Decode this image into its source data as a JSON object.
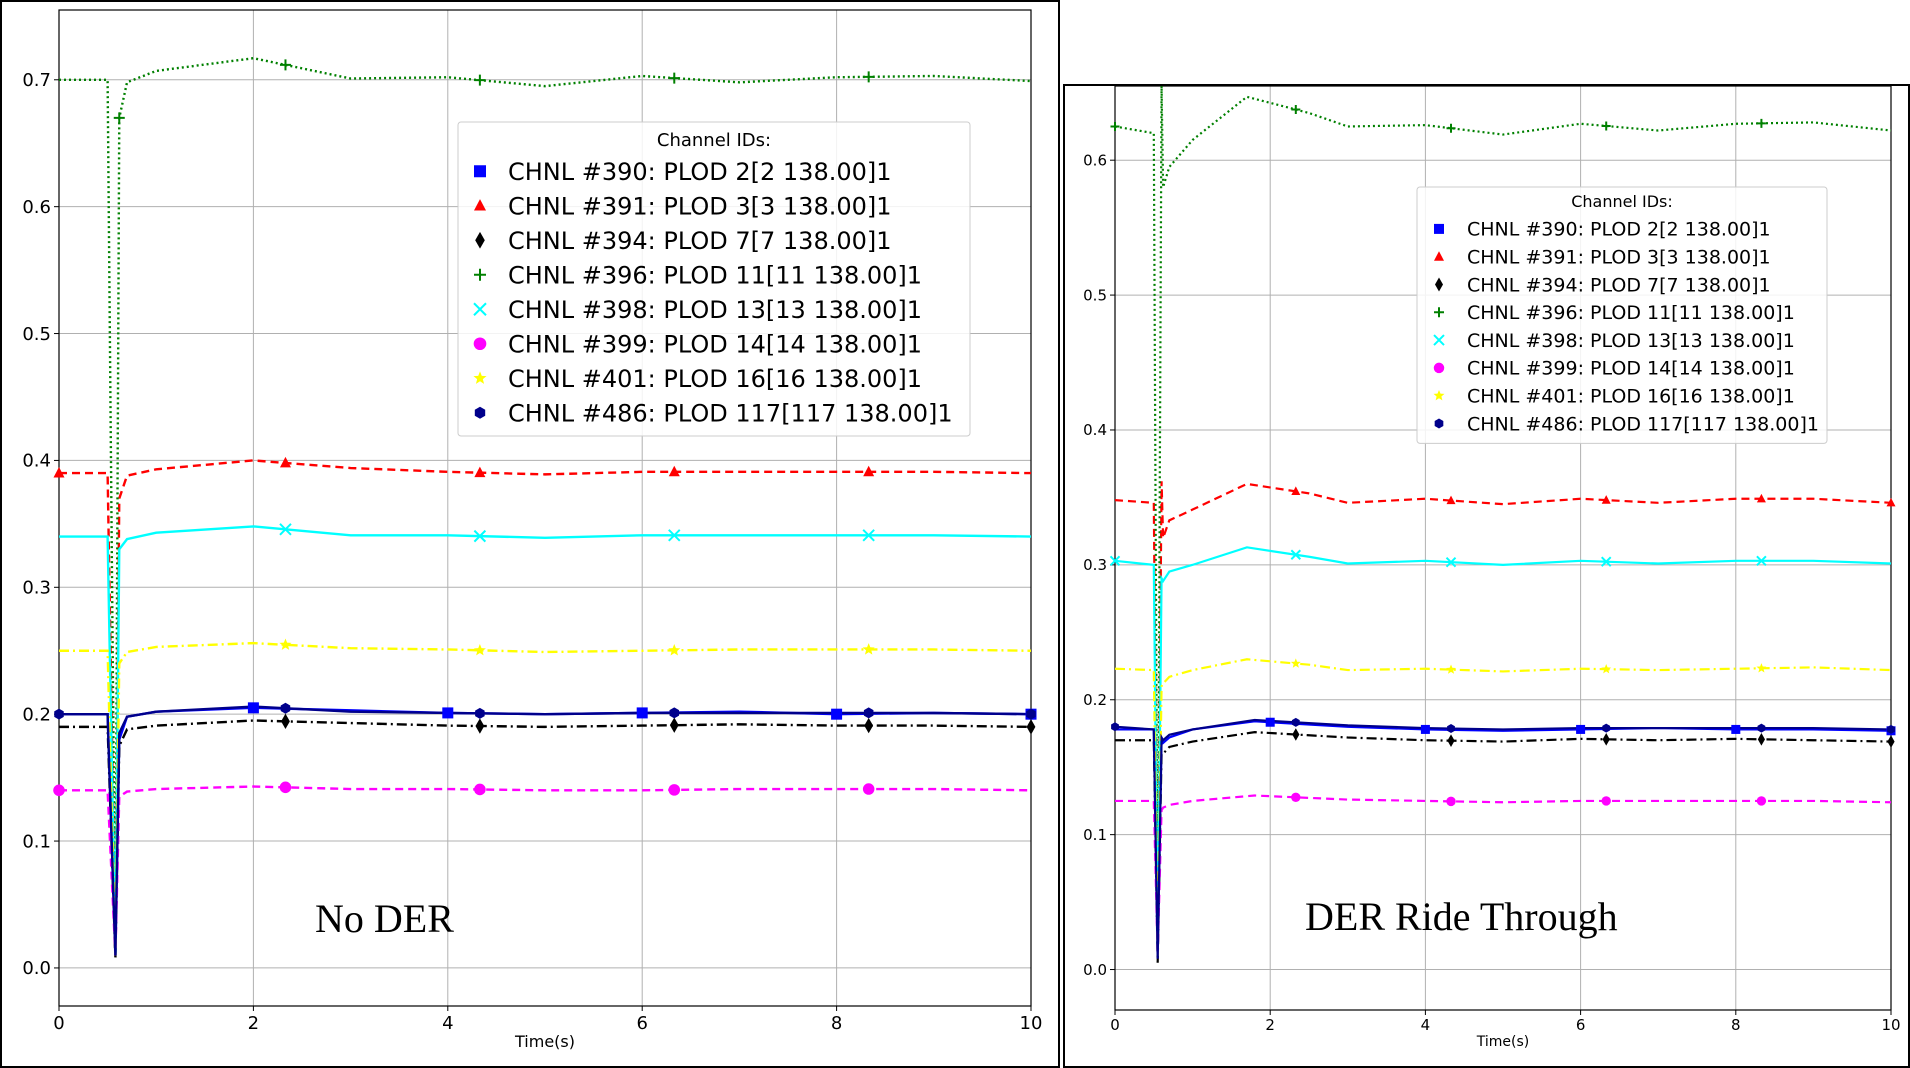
{
  "chart_data": [
    {
      "type": "line",
      "annotation": "No DER",
      "xlabel": "Time(s)",
      "ylabel": "",
      "xlim": [
        0,
        10
      ],
      "ylim": [
        -0.03,
        0.755
      ],
      "xticks": [
        0,
        2,
        4,
        6,
        8,
        10
      ],
      "yticks": [
        0.0,
        0.1,
        0.2,
        0.3,
        0.4,
        0.5,
        0.6,
        0.7
      ],
      "grid": true,
      "legend_title": "Channel IDs:",
      "legend_position": "upper-right",
      "fault": {
        "start": 0.5,
        "end": 0.6
      },
      "series": [
        {
          "name": "CHNL #390: PLOD 2[2 138.00]1",
          "color": "#0000ff",
          "marker": "square",
          "dash": "solid",
          "x": [
            0,
            0.5,
            0.58,
            0.62,
            0.7,
            1.0,
            2.0,
            3.0,
            4.0,
            5.0,
            6.0,
            7.0,
            8.0,
            9.0,
            10.0
          ],
          "y": [
            0.2,
            0.2,
            0.01,
            0.18,
            0.198,
            0.202,
            0.205,
            0.203,
            0.201,
            0.2,
            0.201,
            0.202,
            0.2,
            0.201,
            0.2
          ],
          "marker_x": [
            2.0,
            4.0,
            6.0,
            8.0,
            10.0
          ]
        },
        {
          "name": "CHNL #391: PLOD 3[3 138.00]1",
          "color": "#ff0000",
          "marker": "triangle",
          "dash": "dashed",
          "x": [
            0,
            0.5,
            0.58,
            0.62,
            0.7,
            1.0,
            2.0,
            3.0,
            4.0,
            5.0,
            6.0,
            7.0,
            8.0,
            9.0,
            10.0
          ],
          "y": [
            0.39,
            0.39,
            0.02,
            0.37,
            0.388,
            0.393,
            0.4,
            0.394,
            0.391,
            0.389,
            0.391,
            0.391,
            0.391,
            0.391,
            0.39
          ],
          "marker_x": [
            0.0,
            2.33,
            4.33,
            6.33,
            8.33
          ]
        },
        {
          "name": "CHNL #394: PLOD 7[7 138.00]1",
          "color": "#000000",
          "marker": "diamond",
          "dash": "dashdot",
          "x": [
            0,
            0.5,
            0.58,
            0.62,
            0.7,
            1.0,
            2.0,
            3.0,
            4.0,
            5.0,
            6.0,
            7.0,
            8.0,
            9.0,
            10.0
          ],
          "y": [
            0.19,
            0.19,
            0.008,
            0.175,
            0.188,
            0.191,
            0.195,
            0.193,
            0.191,
            0.19,
            0.191,
            0.192,
            0.191,
            0.191,
            0.19
          ],
          "marker_x": [
            2.33,
            4.33,
            6.33,
            8.33,
            10.0
          ]
        },
        {
          "name": "CHNL #396: PLOD 11[11 138.00]1",
          "color": "#008000",
          "marker": "plus",
          "dash": "dotted",
          "x": [
            0,
            0.5,
            0.58,
            0.62,
            0.7,
            1.0,
            2.0,
            3.0,
            4.0,
            5.0,
            6.0,
            7.0,
            8.0,
            9.0,
            10.0
          ],
          "y": [
            0.7,
            0.7,
            0.01,
            0.67,
            0.698,
            0.707,
            0.717,
            0.701,
            0.702,
            0.695,
            0.703,
            0.698,
            0.702,
            0.703,
            0.699
          ],
          "marker_x": [
            0.62,
            2.33,
            4.33,
            6.33,
            8.33
          ]
        },
        {
          "name": "CHNL #398: PLOD 13[13 138.00]1",
          "color": "#00ffff",
          "marker": "x",
          "dash": "solid",
          "x": [
            0,
            0.5,
            0.58,
            0.62,
            0.7,
            1.0,
            2.0,
            3.0,
            4.0,
            5.0,
            6.0,
            7.0,
            8.0,
            9.0,
            10.0
          ],
          "y": [
            0.34,
            0.34,
            0.01,
            0.33,
            0.338,
            0.343,
            0.348,
            0.341,
            0.341,
            0.339,
            0.341,
            0.341,
            0.341,
            0.341,
            0.34
          ],
          "marker_x": [
            2.33,
            4.33,
            6.33,
            8.33
          ]
        },
        {
          "name": "CHNL #399: PLOD 14[14 138.00]1",
          "color": "#ff00ff",
          "marker": "circle",
          "dash": "dashed",
          "x": [
            0,
            0.5,
            0.58,
            0.62,
            0.7,
            1.0,
            2.0,
            3.0,
            4.0,
            5.0,
            6.0,
            7.0,
            8.0,
            9.0,
            10.0
          ],
          "y": [
            0.14,
            0.14,
            0.01,
            0.135,
            0.139,
            0.141,
            0.143,
            0.141,
            0.141,
            0.14,
            0.14,
            0.141,
            0.141,
            0.141,
            0.14
          ],
          "marker_x": [
            0.0,
            2.33,
            4.33,
            6.33,
            8.33
          ]
        },
        {
          "name": "CHNL #401: PLOD 16[16 138.00]1",
          "color": "#ffff00",
          "marker": "star",
          "dash": "dashdot",
          "x": [
            0,
            0.5,
            0.58,
            0.62,
            0.7,
            1.0,
            2.0,
            3.0,
            4.0,
            5.0,
            6.0,
            7.0,
            8.0,
            9.0,
            10.0
          ],
          "y": [
            0.25,
            0.25,
            0.01,
            0.24,
            0.249,
            0.253,
            0.256,
            0.252,
            0.251,
            0.249,
            0.25,
            0.251,
            0.251,
            0.251,
            0.25
          ],
          "marker_x": [
            2.33,
            4.33,
            6.33,
            8.33
          ]
        },
        {
          "name": "CHNL #486: PLOD 117[117 138.00]1",
          "color": "#00008b",
          "marker": "hexagon",
          "dash": "solid",
          "x": [
            0,
            0.5,
            0.58,
            0.62,
            0.7,
            1.0,
            2.0,
            3.0,
            4.0,
            5.0,
            6.0,
            7.0,
            8.0,
            9.0,
            10.0
          ],
          "y": [
            0.2,
            0.2,
            0.01,
            0.185,
            0.198,
            0.202,
            0.206,
            0.202,
            0.201,
            0.2,
            0.201,
            0.201,
            0.201,
            0.201,
            0.2
          ],
          "marker_x": [
            0.0,
            2.33,
            4.33,
            6.33,
            8.33,
            10.0
          ]
        }
      ]
    },
    {
      "type": "line",
      "annotation": "DER Ride Through",
      "xlabel": "Time(s)",
      "ylabel": "",
      "xlim": [
        0,
        10
      ],
      "ylim": [
        -0.03,
        0.655
      ],
      "xticks": [
        0,
        2,
        4,
        6,
        8,
        10
      ],
      "yticks": [
        0.0,
        0.1,
        0.2,
        0.3,
        0.4,
        0.5,
        0.6
      ],
      "grid": true,
      "legend_title": "Channel IDs:",
      "legend_position": "upper-right",
      "fault": {
        "start": 0.5,
        "end": 0.6
      },
      "series": [
        {
          "name": "CHNL #390: PLOD 2[2 138.00]1",
          "color": "#0000ff",
          "marker": "square",
          "dash": "solid",
          "x": [
            0,
            0.5,
            0.55,
            0.6,
            0.62,
            0.7,
            1.0,
            1.8,
            3.0,
            4.0,
            5.0,
            6.0,
            7.0,
            8.0,
            9.0,
            10.0
          ],
          "y": [
            0.178,
            0.178,
            0.01,
            0.17,
            0.168,
            0.172,
            0.178,
            0.184,
            0.18,
            0.178,
            0.177,
            0.178,
            0.179,
            0.178,
            0.178,
            0.177
          ],
          "marker_x": [
            2.0,
            4.0,
            6.0,
            8.0,
            10.0
          ]
        },
        {
          "name": "CHNL #391: PLOD 3[3 138.00]1",
          "color": "#ff0000",
          "marker": "triangle",
          "dash": "dashed",
          "x": [
            0,
            0.5,
            0.55,
            0.6,
            0.62,
            0.7,
            1.0,
            1.7,
            2.5,
            3.0,
            4.0,
            5.0,
            6.0,
            7.0,
            8.0,
            9.0,
            10.0
          ],
          "y": [
            0.348,
            0.346,
            0.01,
            0.362,
            0.32,
            0.333,
            0.341,
            0.36,
            0.353,
            0.346,
            0.349,
            0.345,
            0.349,
            0.346,
            0.349,
            0.349,
            0.346
          ],
          "marker_x": [
            2.33,
            4.33,
            6.33,
            8.33,
            10.0
          ]
        },
        {
          "name": "CHNL #394: PLOD 7[7 138.00]1",
          "color": "#000000",
          "marker": "diamond",
          "dash": "dashdot",
          "x": [
            0,
            0.5,
            0.55,
            0.6,
            0.62,
            0.7,
            1.0,
            1.8,
            3.0,
            4.0,
            5.0,
            6.0,
            7.0,
            8.0,
            9.0,
            10.0
          ],
          "y": [
            0.17,
            0.17,
            0.005,
            0.16,
            0.16,
            0.165,
            0.169,
            0.176,
            0.172,
            0.17,
            0.169,
            0.171,
            0.17,
            0.171,
            0.17,
            0.169
          ],
          "marker_x": [
            2.33,
            4.33,
            6.33,
            8.33,
            10.0
          ]
        },
        {
          "name": "CHNL #396: PLOD 11[11 138.00]1",
          "color": "#008000",
          "marker": "plus",
          "dash": "dotted",
          "x": [
            0,
            0.5,
            0.55,
            0.6,
            0.62,
            0.7,
            1.0,
            1.7,
            2.5,
            3.0,
            4.0,
            5.0,
            6.0,
            7.0,
            8.0,
            9.0,
            10.0
          ],
          "y": [
            0.625,
            0.62,
            0.01,
            0.655,
            0.58,
            0.595,
            0.615,
            0.647,
            0.635,
            0.625,
            0.626,
            0.619,
            0.627,
            0.622,
            0.627,
            0.628,
            0.622
          ],
          "marker_x": [
            0.0,
            2.33,
            4.33,
            6.33,
            8.33
          ]
        },
        {
          "name": "CHNL #398: PLOD 13[13 138.00]1",
          "color": "#00ffff",
          "marker": "x",
          "dash": "solid",
          "x": [
            0,
            0.5,
            0.55,
            0.6,
            0.62,
            0.7,
            1.0,
            1.7,
            2.5,
            3.0,
            4.0,
            5.0,
            6.0,
            7.0,
            8.0,
            9.0,
            10.0
          ],
          "y": [
            0.303,
            0.3,
            0.01,
            0.29,
            0.288,
            0.295,
            0.3,
            0.313,
            0.306,
            0.301,
            0.303,
            0.3,
            0.303,
            0.301,
            0.303,
            0.303,
            0.301
          ],
          "marker_x": [
            0.0,
            2.33,
            4.33,
            6.33,
            8.33
          ]
        },
        {
          "name": "CHNL #399: PLOD 14[14 138.00]1",
          "color": "#ff00ff",
          "marker": "circle",
          "dash": "dashed",
          "x": [
            0,
            0.5,
            0.55,
            0.6,
            0.62,
            0.7,
            1.0,
            1.8,
            3.0,
            4.0,
            5.0,
            6.0,
            7.0,
            8.0,
            9.0,
            10.0
          ],
          "y": [
            0.125,
            0.125,
            0.01,
            0.118,
            0.12,
            0.122,
            0.125,
            0.129,
            0.126,
            0.125,
            0.124,
            0.125,
            0.125,
            0.125,
            0.125,
            0.124
          ],
          "marker_x": [
            2.33,
            4.33,
            6.33,
            8.33
          ]
        },
        {
          "name": "CHNL #401: PLOD 16[16 138.00]1",
          "color": "#ffff00",
          "marker": "star",
          "dash": "dashdot",
          "x": [
            0,
            0.5,
            0.55,
            0.6,
            0.62,
            0.7,
            1.0,
            1.7,
            2.5,
            3.0,
            4.0,
            5.0,
            6.0,
            7.0,
            8.0,
            9.0,
            10.0
          ],
          "y": [
            0.223,
            0.222,
            0.01,
            0.21,
            0.212,
            0.217,
            0.222,
            0.23,
            0.226,
            0.222,
            0.223,
            0.221,
            0.223,
            0.222,
            0.223,
            0.224,
            0.222
          ],
          "marker_x": [
            2.33,
            4.33,
            6.33,
            8.33
          ]
        },
        {
          "name": "CHNL #486: PLOD 117[117 138.00]1",
          "color": "#00008b",
          "marker": "hexagon",
          "dash": "solid",
          "x": [
            0,
            0.5,
            0.55,
            0.6,
            0.62,
            0.7,
            1.0,
            1.8,
            3.0,
            4.0,
            5.0,
            6.0,
            7.0,
            8.0,
            9.0,
            10.0
          ],
          "y": [
            0.18,
            0.178,
            0.008,
            0.172,
            0.17,
            0.174,
            0.178,
            0.185,
            0.181,
            0.179,
            0.178,
            0.179,
            0.179,
            0.179,
            0.179,
            0.178
          ],
          "marker_x": [
            0.0,
            2.33,
            4.33,
            6.33,
            8.33,
            10.0
          ]
        }
      ]
    }
  ]
}
